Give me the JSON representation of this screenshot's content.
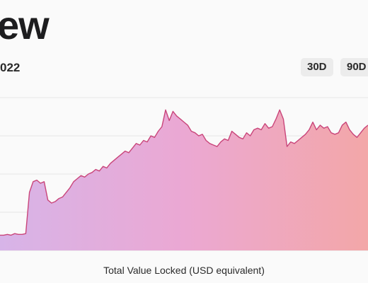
{
  "header": {
    "title": "ew",
    "date": "022",
    "buttons": [
      "30D",
      "90D"
    ]
  },
  "colors": {
    "gradient_start": "#d7b4e8",
    "gradient_mid": "#eba8d3",
    "gradient_end": "#f3a7a8",
    "line": "#c9457a",
    "grid": "#e6e6e6"
  },
  "chart_data": {
    "type": "area",
    "title": "",
    "xlabel": "Total Value Locked (USD equivalent)",
    "ylabel": "",
    "ylim": [
      0,
      100
    ],
    "grid": true,
    "legend": "none",
    "x": [
      0,
      1,
      2,
      3,
      4,
      5,
      6,
      7,
      8,
      9,
      10,
      11,
      12,
      13,
      14,
      15,
      16,
      17,
      18,
      19,
      20,
      21,
      22,
      23,
      24,
      25,
      26,
      27,
      28,
      29,
      30,
      31,
      32,
      33,
      34,
      35,
      36,
      37,
      38,
      39,
      40,
      41,
      42,
      43,
      44,
      45,
      46,
      47,
      48,
      49,
      50,
      51,
      52,
      53,
      54,
      55,
      56,
      57,
      58,
      59,
      60,
      61,
      62,
      63,
      64,
      65,
      66,
      67,
      68,
      69,
      70,
      71,
      72,
      73,
      74,
      75,
      76,
      77,
      78,
      79,
      80,
      81,
      82,
      83,
      84,
      85,
      86,
      87,
      88,
      89,
      90,
      91,
      92,
      93,
      94,
      95,
      96,
      97,
      98,
      99,
      100
    ],
    "series": [
      {
        "values": [
          10,
          10,
          10.5,
          10,
          11,
          10.5,
          10.5,
          11,
          38,
          45,
          46,
          44,
          45,
          33,
          31,
          32,
          34,
          35,
          38,
          41,
          45,
          47,
          49,
          48,
          50,
          51,
          53,
          52,
          55,
          54,
          57,
          59,
          61,
          63,
          65,
          64,
          67,
          70,
          69,
          72,
          71,
          75,
          74,
          78,
          81,
          92,
          85,
          91,
          88,
          86,
          84,
          82,
          78,
          77,
          75,
          76,
          72,
          70,
          69,
          68,
          71,
          73,
          72,
          78,
          76,
          74,
          73,
          77,
          75,
          79,
          80,
          79,
          83,
          80,
          81,
          86,
          92,
          86,
          68,
          71,
          70,
          72,
          74,
          76,
          79,
          84,
          79,
          82,
          80,
          81,
          77,
          76,
          77,
          82,
          84,
          79,
          76,
          74,
          77,
          80,
          82
        ]
      }
    ]
  }
}
